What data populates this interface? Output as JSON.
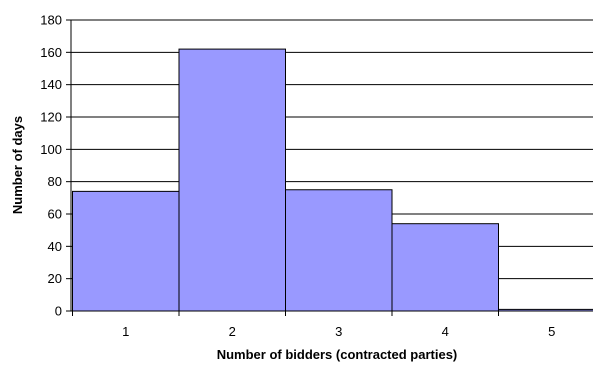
{
  "chart_data": {
    "type": "bar",
    "title": "",
    "xlabel": "Number of bidders  (contracted parties)",
    "ylabel": "Number of days",
    "categories": [
      "1",
      "2",
      "3",
      "4",
      "5"
    ],
    "values": [
      74,
      162,
      75,
      54,
      1
    ],
    "ylim": [
      0,
      180
    ],
    "y_ticks": [
      0,
      20,
      40,
      60,
      80,
      100,
      120,
      140,
      160,
      180
    ],
    "grid": true,
    "legend": "none",
    "bar_color": "#9999ff",
    "bar_outline": "#000000"
  }
}
